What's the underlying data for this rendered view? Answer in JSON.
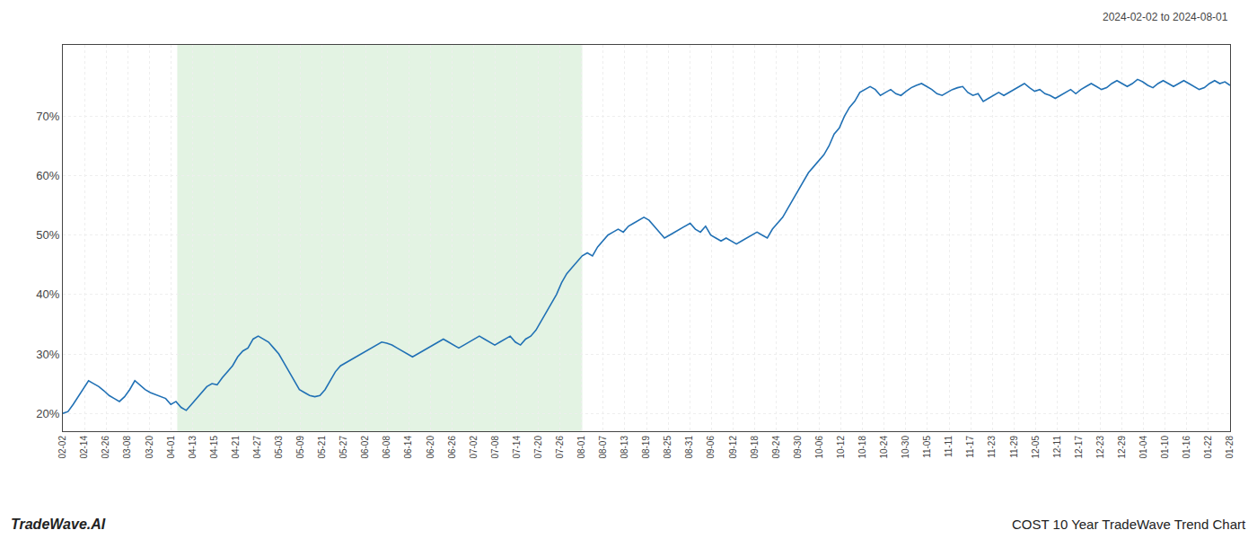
{
  "chart_data": {
    "type": "line",
    "annotations": [
      "2024-02-02 to 2024-08-01",
      "TradeWave.AI",
      "COST 10 Year TradeWave Trend Chart"
    ],
    "color": "#2171b5",
    "grid": true,
    "shaded_region": {
      "x": [
        22.246,
        101.015
      ],
      "color": "#d4ecd4"
    },
    "xlim": [
      0,
      227
    ],
    "xticks": [
      {
        "value": 0,
        "label": "02-02"
      },
      {
        "value": 4.2037,
        "label": "02-14"
      },
      {
        "value": 8.4074,
        "label": "02-26"
      },
      {
        "value": 12.6111,
        "label": "03-08"
      },
      {
        "value": 16.8148,
        "label": "03-20"
      },
      {
        "value": 21.0185,
        "label": "04-01"
      },
      {
        "value": 25.2222,
        "label": "04-13"
      },
      {
        "value": 29.4259,
        "label": "04-15"
      },
      {
        "value": 33.6296,
        "label": "04-21"
      },
      {
        "value": 37.8333,
        "label": "04-27"
      },
      {
        "value": 42.037,
        "label": "05-03"
      },
      {
        "value": 46.2407,
        "label": "05-09"
      },
      {
        "value": 50.4444,
        "label": "05-21"
      },
      {
        "value": 54.6481,
        "label": "05-27"
      },
      {
        "value": 58.8519,
        "label": "06-02"
      },
      {
        "value": 63.0556,
        "label": "06-08"
      },
      {
        "value": 67.2593,
        "label": "06-14"
      },
      {
        "value": 71.463,
        "label": "06-20"
      },
      {
        "value": 75.6667,
        "label": "06-26"
      },
      {
        "value": 79.8704,
        "label": "07-02"
      },
      {
        "value": 84.0741,
        "label": "07-08"
      },
      {
        "value": 88.2778,
        "label": "07-14"
      },
      {
        "value": 92.4815,
        "label": "07-20"
      },
      {
        "value": 96.6852,
        "label": "07-26"
      },
      {
        "value": 100.8889,
        "label": "08-01"
      },
      {
        "value": 105.0926,
        "label": "08-07"
      },
      {
        "value": 109.2963,
        "label": "08-13"
      },
      {
        "value": 113.5,
        "label": "08-19"
      },
      {
        "value": 117.7037,
        "label": "08-25"
      },
      {
        "value": 121.9074,
        "label": "08-31"
      },
      {
        "value": 126.1111,
        "label": "09-06"
      },
      {
        "value": 130.3148,
        "label": "09-12"
      },
      {
        "value": 134.5185,
        "label": "09-18"
      },
      {
        "value": 138.7222,
        "label": "09-24"
      },
      {
        "value": 142.9259,
        "label": "09-30"
      },
      {
        "value": 147.1296,
        "label": "10-06"
      },
      {
        "value": 151.3333,
        "label": "10-12"
      },
      {
        "value": 155.537,
        "label": "10-18"
      },
      {
        "value": 159.7407,
        "label": "10-24"
      },
      {
        "value": 163.9444,
        "label": "10-30"
      },
      {
        "value": 168.1481,
        "label": "11-05"
      },
      {
        "value": 172.3519,
        "label": "11-11"
      },
      {
        "value": 176.5556,
        "label": "11-17"
      },
      {
        "value": 180.7593,
        "label": "11-23"
      },
      {
        "value": 184.963,
        "label": "11-29"
      },
      {
        "value": 189.1667,
        "label": "12-05"
      },
      {
        "value": 193.3704,
        "label": "12-11"
      },
      {
        "value": 197.5741,
        "label": "12-17"
      },
      {
        "value": 201.7778,
        "label": "12-23"
      },
      {
        "value": 205.9815,
        "label": "12-29"
      },
      {
        "value": 210.1852,
        "label": "01-04"
      },
      {
        "value": 214.3889,
        "label": "01-10"
      },
      {
        "value": 218.5926,
        "label": "01-16"
      },
      {
        "value": 222.7963,
        "label": "01-22"
      },
      {
        "value": 227,
        "label": "01-28"
      }
    ],
    "ylim": [
      17,
      82
    ],
    "yticks": [
      {
        "value": 20,
        "label": "20%"
      },
      {
        "value": 30,
        "label": "30%"
      },
      {
        "value": 40,
        "label": "40%"
      },
      {
        "value": 50,
        "label": "50%"
      },
      {
        "value": 60,
        "label": "60%"
      },
      {
        "value": 70,
        "label": "70%"
      }
    ],
    "x": [
      0,
      1,
      2,
      3,
      4,
      5,
      6,
      7,
      8,
      9,
      10,
      11,
      12,
      13,
      14,
      15,
      16,
      17,
      18,
      19,
      20,
      21,
      22,
      23,
      24,
      25,
      26,
      27,
      28,
      29,
      30,
      31,
      32,
      33,
      34,
      35,
      36,
      37,
      38,
      39,
      40,
      41,
      42,
      43,
      44,
      45,
      46,
      47,
      48,
      49,
      50,
      51,
      52,
      53,
      54,
      55,
      56,
      57,
      58,
      59,
      60,
      61,
      62,
      63,
      64,
      65,
      66,
      67,
      68,
      69,
      70,
      71,
      72,
      73,
      74,
      75,
      76,
      77,
      78,
      79,
      80,
      81,
      82,
      83,
      84,
      85,
      86,
      87,
      88,
      89,
      90,
      91,
      92,
      93,
      94,
      95,
      96,
      97,
      98,
      99,
      100,
      101,
      102,
      103,
      104,
      105,
      106,
      107,
      108,
      109,
      110,
      111,
      112,
      113,
      114,
      115,
      116,
      117,
      118,
      119,
      120,
      121,
      122,
      123,
      124,
      125,
      126,
      127,
      128,
      129,
      130,
      131,
      132,
      133,
      134,
      135,
      136,
      137,
      138,
      139,
      140,
      141,
      142,
      143,
      144,
      145,
      146,
      147,
      148,
      149,
      150,
      151,
      152,
      153,
      154,
      155,
      156,
      157,
      158,
      159,
      160,
      161,
      162,
      163,
      164,
      165,
      166,
      167,
      168,
      169,
      170,
      171,
      172,
      173,
      174,
      175,
      176,
      177,
      178,
      179,
      180,
      181,
      182,
      183,
      184,
      185,
      186,
      187,
      188,
      189,
      190,
      191,
      192,
      193,
      194,
      195,
      196,
      197,
      198,
      199,
      200,
      201,
      202,
      203,
      204,
      205,
      206,
      207,
      208,
      209,
      210,
      211,
      212,
      213,
      214,
      215,
      216,
      217,
      218,
      219,
      220,
      221,
      222,
      223,
      224,
      225,
      226,
      227
    ],
    "values": [
      20.0,
      20.3,
      21.5,
      22.8,
      24.2,
      25.5,
      25.0,
      24.5,
      23.8,
      23.0,
      22.5,
      22.0,
      22.8,
      24.0,
      25.5,
      24.8,
      24.0,
      23.5,
      23.2,
      22.8,
      22.5,
      21.5,
      22.0,
      21.0,
      20.5,
      21.5,
      22.5,
      23.5,
      24.5,
      25.0,
      24.8,
      26.0,
      27.0,
      28.0,
      29.5,
      30.5,
      31.0,
      32.5,
      33.0,
      32.5,
      32.0,
      31.0,
      30.0,
      28.5,
      27.0,
      25.5,
      24.0,
      23.5,
      23.0,
      22.8,
      23.0,
      24.0,
      25.5,
      27.0,
      28.0,
      28.5,
      29.0,
      29.5,
      30.0,
      30.5,
      31.0,
      31.5,
      32.0,
      31.8,
      31.5,
      31.0,
      30.5,
      30.0,
      29.5,
      30.0,
      30.5,
      31.0,
      31.5,
      32.0,
      32.5,
      32.0,
      31.5,
      31.0,
      31.5,
      32.0,
      32.5,
      33.0,
      32.5,
      32.0,
      31.5,
      32.0,
      32.5,
      33.0,
      32.0,
      31.5,
      32.5,
      33.0,
      34.0,
      35.5,
      37.0,
      38.5,
      40.0,
      42.0,
      43.5,
      44.5,
      45.5,
      46.5,
      47.0,
      46.5,
      48.0,
      49.0,
      50.0,
      50.5,
      51.0,
      50.5,
      51.5,
      52.0,
      52.5,
      53.0,
      52.5,
      51.5,
      50.5,
      49.5,
      50.0,
      50.5,
      51.0,
      51.5,
      52.0,
      51.0,
      50.5,
      51.5,
      50.0,
      49.5,
      49.0,
      49.5,
      49.0,
      48.5,
      49.0,
      49.5,
      50.0,
      50.5,
      50.0,
      49.5,
      51.0,
      52.0,
      53.0,
      54.5,
      56.0,
      57.5,
      59.0,
      60.5,
      61.5,
      62.5,
      63.5,
      65.0,
      67.0,
      68.0,
      70.0,
      71.5,
      72.5,
      74.0,
      74.5,
      75.0,
      74.5,
      73.5,
      74.0,
      74.5,
      73.8,
      73.5,
      74.2,
      74.8,
      75.2,
      75.5,
      75.0,
      74.5,
      73.8,
      73.5,
      74.0,
      74.5,
      74.8,
      75.0,
      74.0,
      73.5,
      73.8,
      72.5,
      73.0,
      73.5,
      74.0,
      73.5,
      74.0,
      74.5,
      75.0,
      75.5,
      74.8,
      74.2,
      74.5,
      73.8,
      73.5,
      73.0,
      73.5,
      74.0,
      74.5,
      73.8,
      74.5,
      75.0,
      75.5,
      75.0,
      74.5,
      74.8,
      75.5,
      76.0,
      75.5,
      75.0,
      75.5,
      76.2,
      75.8,
      75.2,
      74.8,
      75.5,
      76.0,
      75.5,
      75.0,
      75.5,
      76.0,
      75.5,
      75.0,
      74.5,
      74.8,
      75.5,
      76.0,
      75.5,
      75.8,
      75.2
    ]
  }
}
